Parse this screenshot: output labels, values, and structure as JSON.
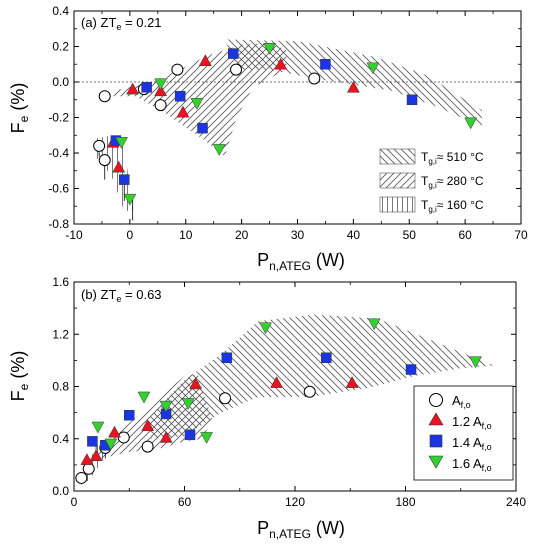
{
  "chart_data": [
    {
      "type": "scatter",
      "panel_label": "(a) ZT",
      "panel_label_sub": "e",
      "panel_label_value": " = 0.21",
      "xlabel": "P",
      "xlabel_sub": "n,ATEG",
      "xlabel_unit": " (W)",
      "ylabel": "F",
      "ylabel_sub": "e",
      "ylabel_unit": " (%)",
      "xlim": [
        -10,
        70
      ],
      "ylim": [
        -0.8,
        0.4
      ],
      "xticks": [
        -10,
        0,
        10,
        20,
        30,
        40,
        50,
        60,
        70
      ],
      "yticks": [
        -0.8,
        -0.6,
        -0.4,
        -0.2,
        0.0,
        0.2,
        0.4
      ],
      "xtick_labels": [
        "-10",
        "0",
        "10",
        "20",
        "30",
        "40",
        "50",
        "60",
        "70"
      ],
      "ytick_labels": [
        "-0.8",
        "-0.6",
        "-0.4",
        "-0.2",
        "0.0",
        "0.2",
        "0.4"
      ],
      "zero_line": true,
      "bands": [
        {
          "legend_label": "T",
          "legend_sub": "g,i",
          "legend_rest": "≈ 510 °C",
          "pattern": "backslash",
          "polygon": [
            [
              17,
              0.24
            ],
            [
              30,
              0.23
            ],
            [
              44,
              0.14
            ],
            [
              53,
              0.04
            ],
            [
              63,
              -0.16
            ],
            [
              63,
              -0.25
            ],
            [
              55,
              -0.14
            ],
            [
              47,
              -0.05
            ],
            [
              41,
              -0.02
            ],
            [
              33,
              0.02
            ],
            [
              25,
              0.07
            ],
            [
              19,
              0.07
            ]
          ]
        },
        {
          "legend_label": "T",
          "legend_sub": "g,i",
          "legend_rest": "≈ 280 °C",
          "pattern": "slash",
          "polygon": [
            [
              -3,
              -0.05
            ],
            [
              3,
              -0.01
            ],
            [
              9,
              0.07
            ],
            [
              14,
              0.15
            ],
            [
              20,
              0.21
            ],
            [
              25,
              0.22
            ],
            [
              28,
              0.18
            ],
            [
              28,
              0.07
            ],
            [
              22,
              -0.03
            ],
            [
              19,
              -0.21
            ],
            [
              17,
              -0.42
            ],
            [
              13,
              -0.32
            ],
            [
              6,
              -0.17
            ],
            [
              1,
              -0.08
            ],
            [
              -3,
              -0.08
            ]
          ]
        },
        {
          "legend_label": "T",
          "legend_sub": "g,i",
          "legend_rest": "≈ 160 °C",
          "pattern": "vertical",
          "polygon": [
            [
              -6.5,
              -0.32
            ],
            [
              -3,
              -0.3
            ],
            [
              -1.5,
              -0.32
            ],
            [
              -0.5,
              -0.48
            ],
            [
              0.5,
              -0.72
            ],
            [
              -1,
              -0.73
            ],
            [
              -3,
              -0.55
            ],
            [
              -5,
              -0.45
            ],
            [
              -6.5,
              -0.42
            ]
          ]
        }
      ],
      "series": [
        {
          "marker": "circle-open",
          "color": "#000000",
          "points": [
            [
              -4.5,
              -0.08
            ],
            [
              2.5,
              -0.04
            ],
            [
              8.5,
              0.07
            ],
            [
              19,
              0.07
            ],
            [
              33,
              0.02
            ],
            [
              5.5,
              -0.13
            ],
            [
              -5.5,
              -0.36
            ],
            [
              -4.5,
              -0.44
            ]
          ]
        },
        {
          "marker": "triangle-up",
          "color": "#e8131f",
          "points": [
            [
              0.5,
              -0.04
            ],
            [
              5.5,
              -0.05
            ],
            [
              13.5,
              0.12
            ],
            [
              27,
              0.1
            ],
            [
              40,
              -0.03
            ],
            [
              9.5,
              -0.17
            ],
            [
              -3,
              -0.34
            ],
            [
              -2,
              -0.48
            ]
          ]
        },
        {
          "marker": "square",
          "color": "#1a36e0",
          "points": [
            [
              3,
              -0.03
            ],
            [
              9,
              -0.08
            ],
            [
              18.5,
              0.16
            ],
            [
              35,
              0.1
            ],
            [
              50.5,
              -0.1
            ],
            [
              13,
              -0.26
            ],
            [
              -2.5,
              -0.33
            ],
            [
              -1,
              -0.55
            ]
          ]
        },
        {
          "marker": "triangle-down",
          "color": "#34d12e",
          "points": [
            [
              5.5,
              -0.01
            ],
            [
              12,
              -0.12
            ],
            [
              25,
              0.19
            ],
            [
              43.5,
              0.08
            ],
            [
              61,
              -0.23
            ],
            [
              16,
              -0.38
            ],
            [
              -1.5,
              -0.34
            ],
            [
              0,
              -0.66
            ]
          ]
        }
      ]
    },
    {
      "type": "scatter",
      "panel_label": "(b) ZT",
      "panel_label_sub": "e",
      "panel_label_value": " = 0.63",
      "xlabel": "P",
      "xlabel_sub": "n,ATEG",
      "xlabel_unit": " (W)",
      "ylabel": "F",
      "ylabel_sub": "e",
      "ylabel_unit": " (%)",
      "xlim": [
        0,
        240
      ],
      "ylim": [
        0,
        1.6
      ],
      "xticks": [
        0,
        60,
        120,
        180,
        240
      ],
      "yticks": [
        0.0,
        0.4,
        0.8,
        1.2,
        1.6
      ],
      "xtick_labels": [
        "0",
        "60",
        "120",
        "180",
        "240"
      ],
      "ytick_labels": [
        "0.0",
        "0.4",
        "0.8",
        "1.2",
        "1.6"
      ],
      "zero_line": false,
      "bands": [
        {
          "pattern": "backslash",
          "polygon": [
            [
              40,
              0.55
            ],
            [
              60,
              0.85
            ],
            [
              80,
              1.05
            ],
            [
              100,
              1.3
            ],
            [
              130,
              1.35
            ],
            [
              165,
              1.32
            ],
            [
              200,
              1.12
            ],
            [
              228,
              0.96
            ],
            [
              210,
              0.94
            ],
            [
              185,
              0.88
            ],
            [
              160,
              0.79
            ],
            [
              128,
              0.72
            ],
            [
              100,
              0.72
            ],
            [
              80,
              0.6
            ],
            [
              60,
              0.42
            ],
            [
              42,
              0.4
            ]
          ]
        },
        {
          "pattern": "slash",
          "polygon": [
            [
              5,
              0.22
            ],
            [
              15,
              0.32
            ],
            [
              30,
              0.52
            ],
            [
              45,
              0.7
            ],
            [
              60,
              0.88
            ],
            [
              67,
              0.9
            ],
            [
              75,
              0.55
            ],
            [
              70,
              0.4
            ],
            [
              60,
              0.38
            ],
            [
              45,
              0.32
            ],
            [
              30,
              0.3
            ],
            [
              15,
              0.25
            ],
            [
              5,
              0.15
            ]
          ]
        },
        {
          "pattern": "vertical",
          "polygon": [
            [
              3,
              0.08
            ],
            [
              8,
              0.22
            ],
            [
              12,
              0.34
            ],
            [
              16,
              0.36
            ],
            [
              20,
              0.34
            ],
            [
              14,
              0.2
            ],
            [
              8,
              0.08
            ],
            [
              3,
              0.05
            ]
          ]
        }
      ],
      "legend": {
        "entries": [
          {
            "label": "A",
            "sub": "f,o",
            "prefix": ""
          },
          {
            "label": "A",
            "sub": "f,o",
            "prefix": "1.2 "
          },
          {
            "label": "A",
            "sub": "f,o",
            "prefix": "1.4 "
          },
          {
            "label": "A",
            "sub": "f,o",
            "prefix": "1.6 "
          }
        ],
        "placement": "bottom-right"
      },
      "series": [
        {
          "marker": "circle-open",
          "color": "#000000",
          "points": [
            [
              4,
              0.1
            ],
            [
              8,
              0.17
            ],
            [
              17,
              0.33
            ],
            [
              27,
              0.41
            ],
            [
              40,
              0.34
            ],
            [
              82,
              0.71
            ],
            [
              128,
              0.76
            ]
          ]
        },
        {
          "marker": "triangle-up",
          "color": "#e8131f",
          "points": [
            [
              7,
              0.24
            ],
            [
              12,
              0.27
            ],
            [
              22,
              0.45
            ],
            [
              40,
              0.5
            ],
            [
              50,
              0.41
            ],
            [
              66,
              0.82
            ],
            [
              110,
              0.83
            ],
            [
              151,
              0.83
            ]
          ]
        },
        {
          "marker": "square",
          "color": "#1a36e0",
          "points": [
            [
              10,
              0.38
            ],
            [
              17,
              0.35
            ],
            [
              30,
              0.58
            ],
            [
              50,
              0.59
            ],
            [
              63,
              0.43
            ],
            [
              83,
              1.02
            ],
            [
              137,
              1.02
            ],
            [
              183,
              0.93
            ]
          ]
        },
        {
          "marker": "triangle-down",
          "color": "#34d12e",
          "points": [
            [
              13,
              0.49
            ],
            [
              20,
              0.36
            ],
            [
              38,
              0.72
            ],
            [
              50,
              0.65
            ],
            [
              62,
              0.67
            ],
            [
              72,
              0.41
            ],
            [
              104,
              1.25
            ],
            [
              163,
              1.28
            ],
            [
              218,
              0.99
            ]
          ]
        }
      ]
    }
  ]
}
